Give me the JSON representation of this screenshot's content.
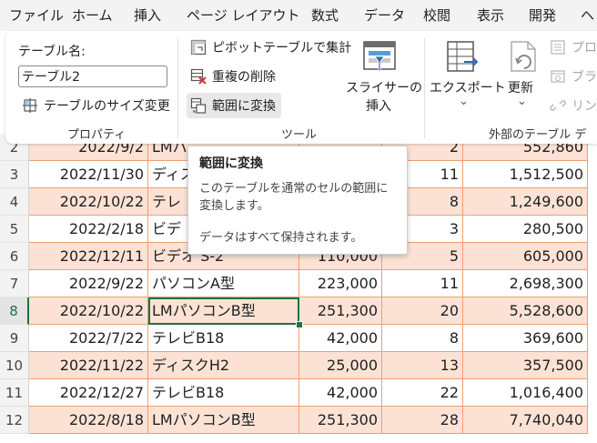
{
  "menu_tabs": [
    "ファイル",
    "ホーム",
    "挿入",
    "ページ レイアウト",
    "数式",
    "データ",
    "校閲",
    "表示",
    "開発",
    "ヘ"
  ],
  "ribbon": {
    "table_name_label": "テーブル名:",
    "table_name_value": "テーブル2",
    "resize_table": "テーブルのサイズ変更",
    "group_properties": "プロパティ",
    "pivot_summary": "ピボットテーブルで集計",
    "remove_duplicates": "重複の削除",
    "convert_to_range": "範囲に変換",
    "slicer_line1": "スライサーの",
    "slicer_line2": "挿入",
    "group_tools": "ツール",
    "export": "エクスポート",
    "export_chevron": "⌄",
    "refresh": "更新",
    "refresh_chevron": "⌄",
    "properties_cut": "プロ",
    "browser_cut": "ブラ",
    "unlink_cut": "リン",
    "group_external": "外部のテーブル デ"
  },
  "tooltip": {
    "title": "範囲に変換",
    "body": "このテーブルを通常のセルの範囲に変換します。",
    "footer": "データはすべて保持されます。"
  },
  "rows": [
    {
      "n": "2",
      "date": "2022/9/2",
      "item": "LMパ",
      "price": "",
      "qty": "2",
      "total": "552,860",
      "band": true
    },
    {
      "n": "3",
      "date": "2022/11/30",
      "item": "ディス",
      "price": "",
      "qty": "11",
      "total": "1,512,500",
      "band": false
    },
    {
      "n": "4",
      "date": "2022/10/22",
      "item": "テレ",
      "price": "",
      "qty": "8",
      "total": "1,249,600",
      "band": true
    },
    {
      "n": "5",
      "date": "2022/2/18",
      "item": "ビデ",
      "price": "",
      "qty": "3",
      "total": "280,500",
      "band": false
    },
    {
      "n": "6",
      "date": "2022/12/11",
      "item": "ビデオ S-2",
      "price": "110,000",
      "qty": "5",
      "total": "605,000",
      "band": true
    },
    {
      "n": "7",
      "date": "2022/9/22",
      "item": "パソコンA型",
      "price": "223,000",
      "qty": "11",
      "total": "2,698,300",
      "band": false
    },
    {
      "n": "8",
      "date": "2022/10/22",
      "item": "LMパソコンB型",
      "price": "251,300",
      "qty": "20",
      "total": "5,528,600",
      "band": true,
      "active": true
    },
    {
      "n": "9",
      "date": "2022/7/22",
      "item": "テレビB18",
      "price": "42,000",
      "qty": "8",
      "total": "369,600",
      "band": false
    },
    {
      "n": "10",
      "date": "2022/11/22",
      "item": "ディスクH2",
      "price": "25,000",
      "qty": "13",
      "total": "357,500",
      "band": true
    },
    {
      "n": "11",
      "date": "2022/12/27",
      "item": "テレビB18",
      "price": "42,000",
      "qty": "22",
      "total": "1,016,400",
      "band": false
    },
    {
      "n": "12",
      "date": "2022/8/18",
      "item": "LMパソコンB型",
      "price": "251,300",
      "qty": "28",
      "total": "7,740,040",
      "band": true
    }
  ]
}
